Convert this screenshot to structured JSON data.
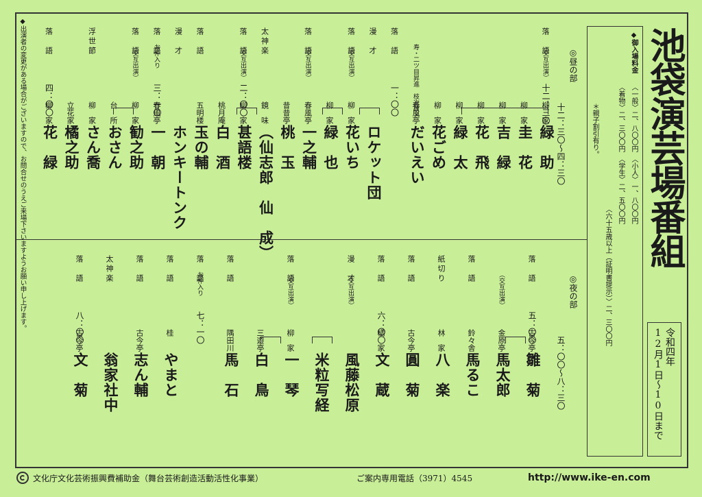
{
  "title": "池袋演芸場番組",
  "date": {
    "era": "令和四年",
    "range": "12月1日〜10日まで"
  },
  "fees": {
    "heading": "◆御入場料金",
    "line1": "〈一般〉二、八〇〇円　〈小人〉一、八〇〇円",
    "line2": "〈着物〉二、三〇〇円　〈学生〉二、五〇〇円",
    "line3": "〈六十五歳以上（証明書提示）〉二、三〇〇円",
    "line4": "＊親子割引有り。"
  },
  "notice": "◆出演者の変更がある場合がございますので、お問合せのうえご来場下さいますようお願い申し上げます。",
  "day": {
    "label": "◎昼の部",
    "time": "十二：三〇〜四：三〇",
    "items": [
      {
        "genre": "落　語",
        "note": "（交互出演）",
        "time": "十二：三〇",
        "house": "柳　家",
        "name": "緑　助"
      },
      {
        "genre": "",
        "note": "",
        "time": "",
        "house": "柳　家",
        "name": "圭　花"
      },
      {
        "genre": "",
        "note": "",
        "time": "",
        "house": "柳　家",
        "name": "吉　緑"
      },
      {
        "genre": "",
        "note": "",
        "time": "",
        "house": "柳　家",
        "name": "花　飛"
      },
      {
        "genre": "",
        "note": "",
        "time": "",
        "house": "柳　家",
        "name": "緑　太"
      },
      {
        "genre": "",
        "note": "",
        "time": "",
        "house": "柳　家",
        "name": "花ごめ"
      },
      {
        "genre": "",
        "note": "寿・二ツ目昇進　枝次改メ",
        "time": "",
        "house": "春風亭",
        "name": "だいえい"
      },
      {
        "genre": "落　語",
        "note": "",
        "time": "一：〇〇",
        "house": "",
        "name": ""
      },
      {
        "genre": "漫　才",
        "note": "",
        "time": "",
        "house": "",
        "name": "ロケット団"
      },
      {
        "genre": "落　語",
        "note": "（交互出演）",
        "time": "",
        "house": "柳　家",
        "name": "花いち"
      },
      {
        "genre": "",
        "note": "",
        "time": "",
        "house": "柳　家",
        "name": "緑　也"
      },
      {
        "genre": "落　語",
        "note": "（交互出演）",
        "time": "",
        "house": "春風亭",
        "name": "一之輔"
      },
      {
        "genre": "",
        "note": "",
        "time": "",
        "house": "昔昔亭",
        "name": "桃　玉"
      },
      {
        "genre": "太神楽",
        "note": "",
        "time": "",
        "house": "鏡　味",
        "name": "（仙志郎　仙　成）"
      },
      {
        "genre": "落　語",
        "note": "（交互出演）",
        "time": "二：〇〇",
        "house": "柳　家",
        "name": "甚語楼"
      },
      {
        "genre": "",
        "note": "",
        "time": "",
        "house": "桃月庵",
        "name": "白　酒"
      },
      {
        "genre": "落　語",
        "note": "",
        "time": "",
        "house": "五明楼",
        "name": "玉の輔"
      },
      {
        "genre": "漫　才",
        "note": "",
        "time": "",
        "house": "",
        "name": "ホンキートンク"
      },
      {
        "genre": "落　語",
        "note": "お仲入り",
        "time": "三：一〇",
        "house": "春風亭",
        "name": "一　朝"
      },
      {
        "genre": "落　語",
        "note": "（交互出演）",
        "time": "",
        "house": "柳　家",
        "name": "勧之助"
      },
      {
        "genre": "",
        "note": "",
        "time": "",
        "house": "台　所",
        "name": "おさん"
      },
      {
        "genre": "浮世節",
        "note": "",
        "time": "",
        "house": "柳　家",
        "name": "さん喬"
      },
      {
        "genre": "",
        "note": "",
        "time": "",
        "house": "立花家",
        "name": "橘之助"
      },
      {
        "genre": "落　語",
        "note": "",
        "time": "四：〇〇",
        "house": "柳　家",
        "name": "花　緑"
      }
    ]
  },
  "night": {
    "label": "◎夜の部",
    "time": "五：〇〇〜八：三〇",
    "items": [
      {
        "genre": "落　語",
        "note": "",
        "time": "五：〇〇",
        "house": "古今亭",
        "name": "雛　菊"
      },
      {
        "genre": "",
        "note": "（交互出演）",
        "time": "",
        "house": "金原亭",
        "name": "馬太郎"
      },
      {
        "genre": "落　語",
        "note": "",
        "time": "",
        "house": "鈴々舎",
        "name": "馬るこ"
      },
      {
        "genre": "紙切り",
        "note": "",
        "time": "",
        "house": "林　家",
        "name": "八　楽"
      },
      {
        "genre": "落　語",
        "note": "",
        "time": "",
        "house": "古今亭",
        "name": "圓　菊"
      },
      {
        "genre": "落　語",
        "note": "",
        "time": "六：〇〇",
        "house": "橘　家",
        "name": "文　蔵"
      },
      {
        "genre": "漫　才",
        "note": "（交互出演）",
        "time": "",
        "house": "",
        "name": "風藤松原"
      },
      {
        "genre": "",
        "note": "",
        "time": "",
        "house": "",
        "name": "米粒写経"
      },
      {
        "genre": "落　語",
        "note": "（交互出演）",
        "time": "",
        "house": "柳　家",
        "name": "一　琴"
      },
      {
        "genre": "",
        "note": "",
        "time": "",
        "house": "三遊亭",
        "name": "白　鳥"
      },
      {
        "genre": "落　語",
        "note": "",
        "time": "",
        "house": "隅田川",
        "name": "馬　石"
      },
      {
        "genre": "落　語",
        "note": "お仲入り",
        "time": "七：一〇",
        "house": "",
        "name": ""
      },
      {
        "genre": "落　語",
        "note": "",
        "time": "",
        "house": "桂",
        "name": "やまと"
      },
      {
        "genre": "落　語",
        "note": "",
        "time": "",
        "house": "古今亭",
        "name": "志ん輔"
      },
      {
        "genre": "太神楽",
        "note": "",
        "time": "",
        "house": "",
        "name": "翁家社中"
      },
      {
        "genre": "落　語",
        "note": "",
        "time": "八：〇〇",
        "house": "古今亭",
        "name": "文　菊"
      }
    ]
  },
  "footer": {
    "subsidy": "文化庁文化芸術振興費補助金（舞台芸術創造活動活性化事業）",
    "phone": "ご案内専用電話（3971）4545",
    "url": "http://www.ike-en.com"
  }
}
